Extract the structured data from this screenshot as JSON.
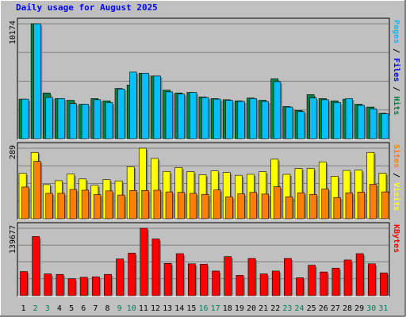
{
  "chart_data": {
    "type": "bar",
    "title": "Daily usage for August 2025",
    "colors": {
      "background": "#c0c0c0",
      "hits": "#008040",
      "files": "#00c0ff",
      "visits": "#ffff00",
      "sites": "#ff8000",
      "kbytes": "#ff0000",
      "weekend_label": "#00805c",
      "weekday_label": "#000000",
      "title": "#0000ff"
    },
    "categories": [
      "1",
      "2",
      "3",
      "4",
      "5",
      "6",
      "7",
      "8",
      "9",
      "10",
      "11",
      "12",
      "13",
      "14",
      "15",
      "16",
      "17",
      "18",
      "19",
      "20",
      "21",
      "22",
      "23",
      "24",
      "25",
      "26",
      "27",
      "28",
      "29",
      "30",
      "31"
    ],
    "weekend_days": [
      "2",
      "3",
      "9",
      "10",
      "16",
      "17",
      "23",
      "24",
      "30",
      "31"
    ],
    "panels": [
      {
        "id": "top",
        "scale_label": "10174",
        "ymax": 10174,
        "axis_label_parts": [
          {
            "text": "Pages",
            "color": "#00c0ff"
          },
          {
            "text": " / ",
            "color": "#000000"
          },
          {
            "text": "Files",
            "color": "#0000ff"
          },
          {
            "text": " / ",
            "color": "#000000"
          },
          {
            "text": "Hits",
            "color": "#008040"
          }
        ],
        "series": [
          {
            "name": "Hits",
            "color": "#008040",
            "values": [
              3500,
              10174,
              4050,
              3550,
              3400,
              3050,
              3550,
              3350,
              4450,
              4750,
              5800,
              5550,
              4300,
              4050,
              4100,
              3700,
              3550,
              3450,
              3350,
              3600,
              3400,
              5300,
              2850,
              2500,
              3900,
              3550,
              3350,
              3500,
              3050,
              2800,
              2250
            ]
          },
          {
            "name": "Files",
            "color": "#00c0ff",
            "values": [
              3500,
              10174,
              3650,
              3550,
              3100,
              3050,
              3450,
              3200,
              4400,
              5900,
              5800,
              5550,
              4150,
              3950,
              4100,
              3650,
              3500,
              3400,
              3300,
              3550,
              3300,
              5050,
              2800,
              2400,
              3600,
              3450,
              3200,
              3550,
              2950,
              2650,
              2200
            ]
          }
        ]
      },
      {
        "id": "middle",
        "scale_label": "289",
        "ymax": 289,
        "axis_label_parts": [
          {
            "text": "Sites",
            "color": "#ff8000"
          },
          {
            "text": " / ",
            "color": "#000000"
          },
          {
            "text": "Visits",
            "color": "#ffff00"
          }
        ],
        "series": [
          {
            "name": "Visits",
            "color": "#ffff00",
            "values": [
              186,
              272,
              140,
              156,
              183,
              163,
              137,
              160,
              155,
              213,
              289,
              247,
              194,
              210,
              193,
              180,
              196,
              190,
              178,
              182,
              193,
              244,
              182,
              206,
              206,
              233,
              174,
              198,
              199,
              272,
              186
            ]
          },
          {
            "name": "Sites",
            "color": "#ff8000",
            "values": [
              130,
              235,
              104,
              104,
              120,
              117,
              99,
              114,
              97,
              116,
              116,
              117,
              110,
              108,
              104,
              100,
              118,
              90,
              102,
              108,
              101,
              131,
              90,
              106,
              100,
              122,
              87,
              106,
              109,
              141,
              110
            ]
          }
        ]
      },
      {
        "id": "bottom",
        "scale_label": "139677",
        "ymax": 139677,
        "axis_label_parts": [
          {
            "text": "KBytes",
            "color": "#ff0000"
          }
        ],
        "series": [
          {
            "name": "KBytes",
            "color": "#ff0000",
            "values": [
              50000,
              122500,
              45000,
              44000,
              35000,
              38000,
              39000,
              44000,
              76000,
              88000,
              139677,
              117500,
              67000,
              87000,
              66000,
              65000,
              51000,
              81000,
              42000,
              77000,
              45000,
              51000,
              77000,
              37000,
              63000,
              49000,
              57000,
              74000,
              87000,
              66000,
              47000
            ]
          }
        ]
      }
    ]
  }
}
